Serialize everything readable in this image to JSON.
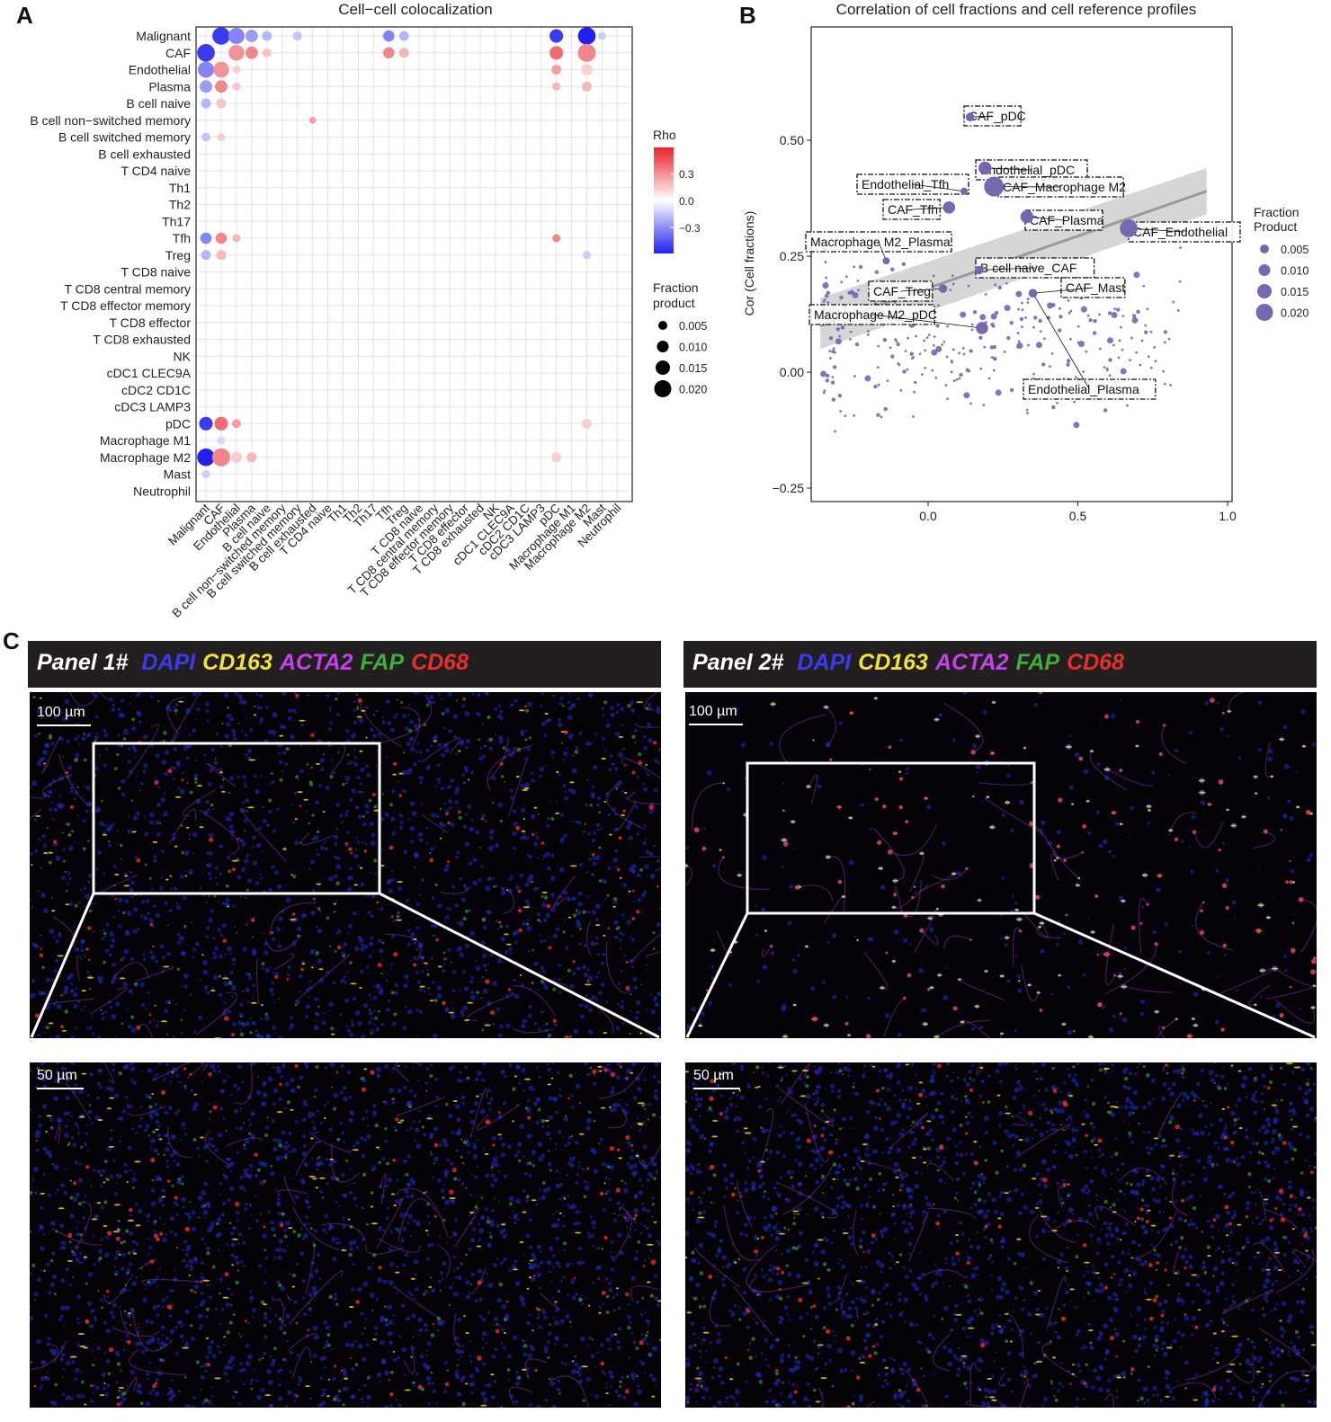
{
  "labels": {
    "a": "A",
    "b": "B",
    "c": "C"
  },
  "chart_data": [
    {
      "type": "bubble-matrix",
      "title": "Cell−cell colocalization",
      "cell_types": [
        "Malignant",
        "CAF",
        "Endothelial",
        "Plasma",
        "B cell naive",
        "B cell non−switched memory",
        "B cell switched memory",
        "B cell exhausted",
        "T CD4 naive",
        "Th1",
        "Th2",
        "Th17",
        "Tfh",
        "Treg",
        "T CD8 naive",
        "T CD8 central memory",
        "T CD8 effector memory",
        "T CD8 effector",
        "T CD8 exhausted",
        "NK",
        "cDC1 CLEC9A",
        "cDC2 CD1C",
        "cDC3 LAMP3",
        "pDC",
        "Macrophage M1",
        "Macrophage M2",
        "Mast",
        "Neutrophil"
      ],
      "color_legend": {
        "title": "Rho",
        "ticks": [
          "0.3",
          "0.0",
          "−0.3"
        ],
        "colors": {
          "high": "#e8232a",
          "mid": "#ffffff",
          "low": "#2121ee"
        }
      },
      "size_legend": {
        "title_line1": "Fraction",
        "title_line2": "product",
        "values": [
          "0.005",
          "0.010",
          "0.015",
          "0.020"
        ]
      },
      "entries": [
        {
          "row": 0,
          "col": 1,
          "rho": -0.4,
          "size": 0.02
        },
        {
          "row": 0,
          "col": 2,
          "rho": -0.25,
          "size": 0.016
        },
        {
          "row": 0,
          "col": 3,
          "rho": -0.2,
          "size": 0.008
        },
        {
          "row": 0,
          "col": 4,
          "rho": -0.15,
          "size": 0.004
        },
        {
          "row": 0,
          "col": 6,
          "rho": -0.12,
          "size": 0.003
        },
        {
          "row": 0,
          "col": 12,
          "rho": -0.25,
          "size": 0.006
        },
        {
          "row": 0,
          "col": 13,
          "rho": -0.15,
          "size": 0.004
        },
        {
          "row": 0,
          "col": 23,
          "rho": -0.4,
          "size": 0.01
        },
        {
          "row": 0,
          "col": 25,
          "rho": -0.45,
          "size": 0.02
        },
        {
          "row": 0,
          "col": 26,
          "rho": -0.1,
          "size": 0.002
        },
        {
          "row": 1,
          "col": 0,
          "rho": -0.4,
          "size": 0.02
        },
        {
          "row": 1,
          "col": 2,
          "rho": 0.22,
          "size": 0.015
        },
        {
          "row": 1,
          "col": 3,
          "rho": 0.25,
          "size": 0.008
        },
        {
          "row": 1,
          "col": 4,
          "rho": 0.12,
          "size": 0.003
        },
        {
          "row": 1,
          "col": 12,
          "rho": 0.25,
          "size": 0.006
        },
        {
          "row": 1,
          "col": 13,
          "rho": 0.15,
          "size": 0.004
        },
        {
          "row": 1,
          "col": 23,
          "rho": 0.3,
          "size": 0.01
        },
        {
          "row": 1,
          "col": 25,
          "rho": 0.25,
          "size": 0.021
        },
        {
          "row": 2,
          "col": 0,
          "rho": -0.25,
          "size": 0.016
        },
        {
          "row": 2,
          "col": 1,
          "rho": 0.22,
          "size": 0.015
        },
        {
          "row": 2,
          "col": 2,
          "rho": 0.1,
          "size": 0.002
        },
        {
          "row": 2,
          "col": 23,
          "rho": 0.2,
          "size": 0.004
        },
        {
          "row": 2,
          "col": 25,
          "rho": 0.1,
          "size": 0.006
        },
        {
          "row": 3,
          "col": 0,
          "rho": -0.2,
          "size": 0.008
        },
        {
          "row": 3,
          "col": 1,
          "rho": 0.25,
          "size": 0.008
        },
        {
          "row": 3,
          "col": 2,
          "rho": 0.12,
          "size": 0.002
        },
        {
          "row": 3,
          "col": 23,
          "rho": 0.15,
          "size": 0.002
        },
        {
          "row": 3,
          "col": 25,
          "rho": 0.15,
          "size": 0.004
        },
        {
          "row": 4,
          "col": 0,
          "rho": -0.15,
          "size": 0.004
        },
        {
          "row": 4,
          "col": 1,
          "rho": 0.12,
          "size": 0.004
        },
        {
          "row": 5,
          "col": 7,
          "rho": 0.2,
          "size": 0.001
        },
        {
          "row": 6,
          "col": 0,
          "rho": -0.12,
          "size": 0.003
        },
        {
          "row": 6,
          "col": 1,
          "rho": 0.1,
          "size": 0.002
        },
        {
          "row": 12,
          "col": 0,
          "rho": -0.25,
          "size": 0.006
        },
        {
          "row": 12,
          "col": 1,
          "rho": 0.25,
          "size": 0.006
        },
        {
          "row": 12,
          "col": 2,
          "rho": 0.15,
          "size": 0.002
        },
        {
          "row": 12,
          "col": 23,
          "rho": 0.25,
          "size": 0.002
        },
        {
          "row": 13,
          "col": 0,
          "rho": -0.15,
          "size": 0.004
        },
        {
          "row": 13,
          "col": 1,
          "rho": 0.15,
          "size": 0.004
        },
        {
          "row": 13,
          "col": 25,
          "rho": -0.1,
          "size": 0.002
        },
        {
          "row": 23,
          "col": 0,
          "rho": -0.4,
          "size": 0.01
        },
        {
          "row": 23,
          "col": 1,
          "rho": 0.3,
          "size": 0.01
        },
        {
          "row": 23,
          "col": 2,
          "rho": 0.2,
          "size": 0.003
        },
        {
          "row": 23,
          "col": 25,
          "rho": 0.1,
          "size": 0.004
        },
        {
          "row": 24,
          "col": 1,
          "rho": -0.08,
          "size": 0.002
        },
        {
          "row": 25,
          "col": 0,
          "rho": -0.45,
          "size": 0.02
        },
        {
          "row": 25,
          "col": 1,
          "rho": 0.25,
          "size": 0.021
        },
        {
          "row": 25,
          "col": 2,
          "rho": 0.1,
          "size": 0.006
        },
        {
          "row": 25,
          "col": 3,
          "rho": 0.15,
          "size": 0.004
        },
        {
          "row": 25,
          "col": 23,
          "rho": 0.1,
          "size": 0.004
        },
        {
          "row": 26,
          "col": 0,
          "rho": -0.1,
          "size": 0.002
        }
      ]
    },
    {
      "type": "scatter",
      "title": "Correlation of cell fractions and cell reference profiles",
      "xlabel": "",
      "ylabel": "Cor (Cell fractions)",
      "xlim": [
        -0.4,
        1.02
      ],
      "ylim": [
        -0.25,
        0.75
      ],
      "xticks": [
        "0.0",
        "0.5",
        "1.0"
      ],
      "yticks": [
        "−0.25",
        "0.00",
        "0.25",
        "0.50"
      ],
      "color": "#7766b0",
      "fit": {
        "x": [
          -0.36,
          0.93
        ],
        "y": [
          0.1,
          0.39
        ],
        "band_low": [
          0.05,
          0.34
        ],
        "band_high": [
          0.16,
          0.44
        ]
      },
      "size_legend": {
        "title_line1": "Fraction",
        "title_line2": "Product",
        "values": [
          "0.005",
          "0.010",
          "0.015",
          "0.020"
        ]
      },
      "labeled_points": [
        {
          "label": "CAF_pDC",
          "x": 0.14,
          "y": 0.55,
          "size": 0.002
        },
        {
          "label": "Endothelial_pDC",
          "x": 0.19,
          "y": 0.44,
          "size": 0.007
        },
        {
          "label": "Endothelial_Tfh",
          "x": 0.12,
          "y": 0.39,
          "size": 0.001
        },
        {
          "label": "CAF_Macrophage M2",
          "x": 0.22,
          "y": 0.4,
          "size": 0.021
        },
        {
          "label": "CAF_Tfh",
          "x": 0.07,
          "y": 0.355,
          "size": 0.006
        },
        {
          "label": "CAF_Plasma",
          "x": 0.33,
          "y": 0.335,
          "size": 0.007
        },
        {
          "label": "CAF_Endothelial",
          "x": 0.67,
          "y": 0.31,
          "size": 0.016
        },
        {
          "label": "Macrophage M2_Plasma",
          "x": -0.14,
          "y": 0.24,
          "size": 0.001
        },
        {
          "label": "B cell naive_CAF",
          "x": 0.17,
          "y": 0.22,
          "size": 0.002
        },
        {
          "label": "CAF_Treg",
          "x": 0.05,
          "y": 0.18,
          "size": 0.002
        },
        {
          "label": "CAF_Mast",
          "x": 0.35,
          "y": 0.17,
          "size": 0.002
        },
        {
          "label": "Macrophage M2_pDC",
          "x": 0.18,
          "y": 0.095,
          "size": 0.006
        },
        {
          "label": "Endothelial_Plasma",
          "x": 0.35,
          "y": 0.17,
          "size": 0.002
        }
      ]
    }
  ],
  "microscopy": {
    "panel1": {
      "prefix": "Panel 1#",
      "scale_top": "100 µm",
      "scale_bottom": "50 µm"
    },
    "panel2": {
      "prefix": "Panel 2#",
      "scale_top": "100 µm",
      "scale_bottom": "50 µm"
    },
    "markers": [
      {
        "name": "DAPI",
        "color": "#3a3af0"
      },
      {
        "name": "CD163",
        "color": "#f0e23a"
      },
      {
        "name": "ACTA2",
        "color": "#c542e8"
      },
      {
        "name": "FAP",
        "color": "#3fae3a"
      },
      {
        "name": "CD68",
        "color": "#e8302a"
      }
    ]
  }
}
